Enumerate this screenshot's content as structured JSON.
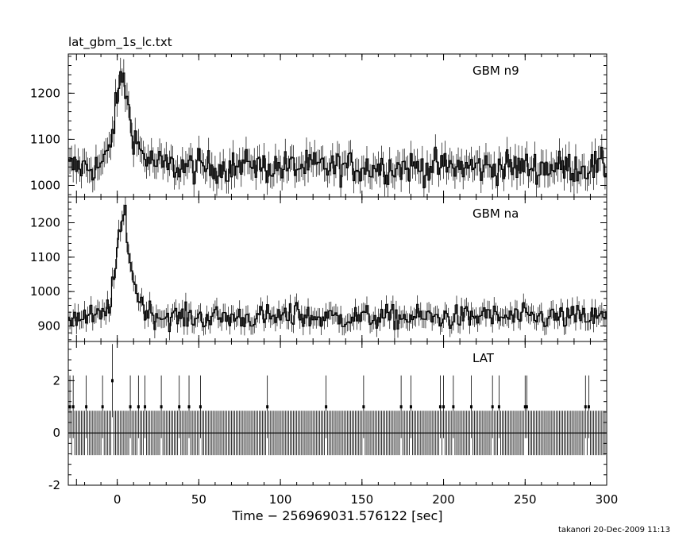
{
  "title": "lat_gbm_1s_lc.txt",
  "footer": "takanori 20-Dec-2009 11:13",
  "chart_data": {
    "type": "line",
    "title": "lat_gbm_1s_lc.txt",
    "xlabel": "Time − 256969031.576122 [sec]",
    "xlim": [
      -30,
      300
    ],
    "xticks": [
      0,
      50,
      100,
      150,
      200,
      250,
      300
    ],
    "panels": [
      {
        "name": "GBM n9",
        "ylim": [
          975,
          1285
        ],
        "yticks": [
          1000,
          1100,
          1200
        ],
        "baseline": 1040,
        "noise": 25,
        "peak": {
          "center": 4,
          "amplitude": 200,
          "rise": 5,
          "decay": 6
        },
        "bumps": [
          {
            "x": 82,
            "amplitude": 20
          }
        ]
      },
      {
        "name": "GBM na",
        "ylim": [
          855,
          1275
        ],
        "yticks": [
          900,
          1000,
          1100,
          1200
        ],
        "baseline": 925,
        "noise": 25,
        "peak": {
          "center": 5,
          "amplitude": 300,
          "rise": 5,
          "decay": 5
        },
        "bumps": [
          {
            "x": 110,
            "amplitude": 40
          },
          {
            "x": 225,
            "amplitude": 20
          }
        ]
      },
      {
        "name": "LAT",
        "ylim": [
          -2,
          3.5
        ],
        "yticks": [
          -2,
          0,
          2
        ],
        "counts_x": [
          -29,
          -27,
          -19,
          -9,
          -3,
          8,
          13,
          17,
          27,
          38,
          44,
          51,
          92,
          128,
          151,
          174,
          180,
          198,
          200,
          206,
          217,
          230,
          234,
          250,
          251,
          287,
          289
        ],
        "counts_y": [
          1,
          1,
          1,
          1,
          2,
          1,
          1,
          1,
          1,
          1,
          1,
          1,
          1,
          1,
          1,
          1,
          1,
          1,
          1,
          1,
          1,
          1,
          1,
          1,
          1,
          1,
          1
        ]
      }
    ]
  }
}
